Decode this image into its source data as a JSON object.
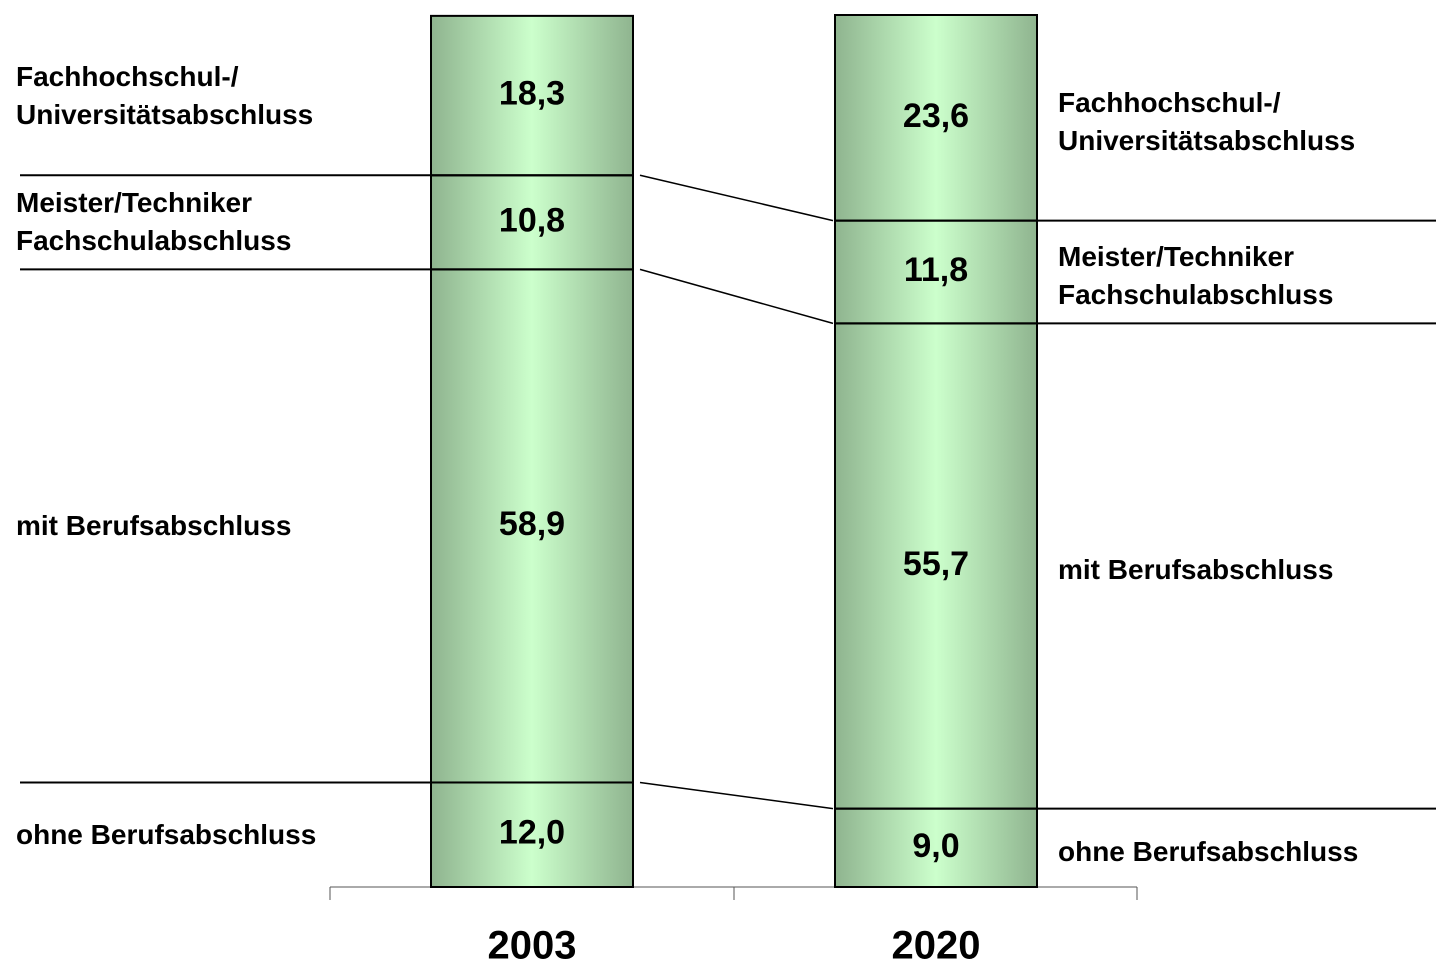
{
  "chart_data": {
    "type": "stacked-bar",
    "categories": [
      "2003",
      "2020"
    ],
    "color": "#ccffcc",
    "series": [
      {
        "name": "ohne Berufsabschluss",
        "values": [
          12.0,
          9.0
        ],
        "value_labels": [
          "12,0",
          "9,0"
        ]
      },
      {
        "name": "mit Berufsabschluss",
        "values": [
          58.9,
          55.7
        ],
        "value_labels": [
          "58,9",
          "55,7"
        ]
      },
      {
        "name": "Meister/Techniker\nFachschulabschluss",
        "values": [
          10.8,
          11.8
        ],
        "value_labels": [
          "10,8",
          "11,8"
        ]
      },
      {
        "name": "Fachhochschul-/\nUniversitätsabschluss",
        "values": [
          18.3,
          23.6
        ],
        "value_labels": [
          "18,3",
          "23,6"
        ]
      }
    ]
  }
}
